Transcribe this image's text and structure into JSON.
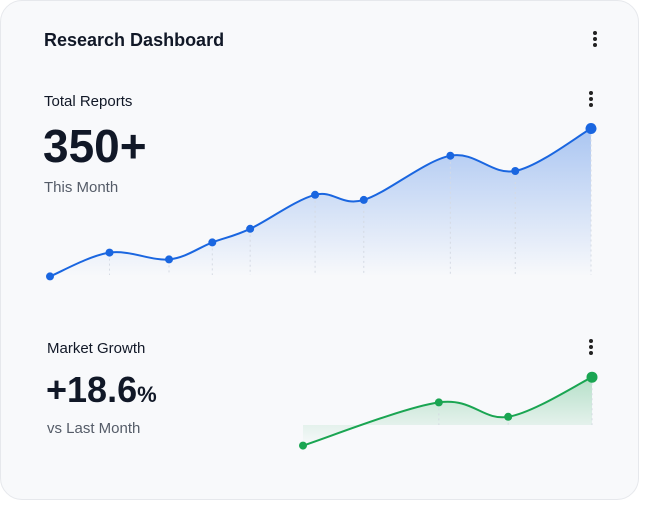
{
  "header": {
    "title": "Research Dashboard"
  },
  "chart_data": [
    {
      "type": "line",
      "title": "Total Reports",
      "headline": "350+",
      "subtitle": "This Month",
      "color": "#1a66e0",
      "x": [
        0,
        11,
        22,
        30,
        37,
        49,
        58,
        74,
        86,
        100
      ],
      "values": [
        8,
        22,
        18,
        28,
        36,
        56,
        53,
        79,
        70,
        95
      ],
      "xlim": [
        0,
        100
      ],
      "ylim": [
        0,
        100
      ]
    },
    {
      "type": "line",
      "title": "Market Growth",
      "headline": "+18.6",
      "headline_unit": "%",
      "subtitle": "vs Last Month",
      "color": "#1aa552",
      "x": [
        0,
        47,
        71,
        100
      ],
      "values": [
        16,
        64,
        48,
        92
      ],
      "xlim": [
        0,
        100
      ],
      "ylim": [
        0,
        100
      ]
    }
  ]
}
